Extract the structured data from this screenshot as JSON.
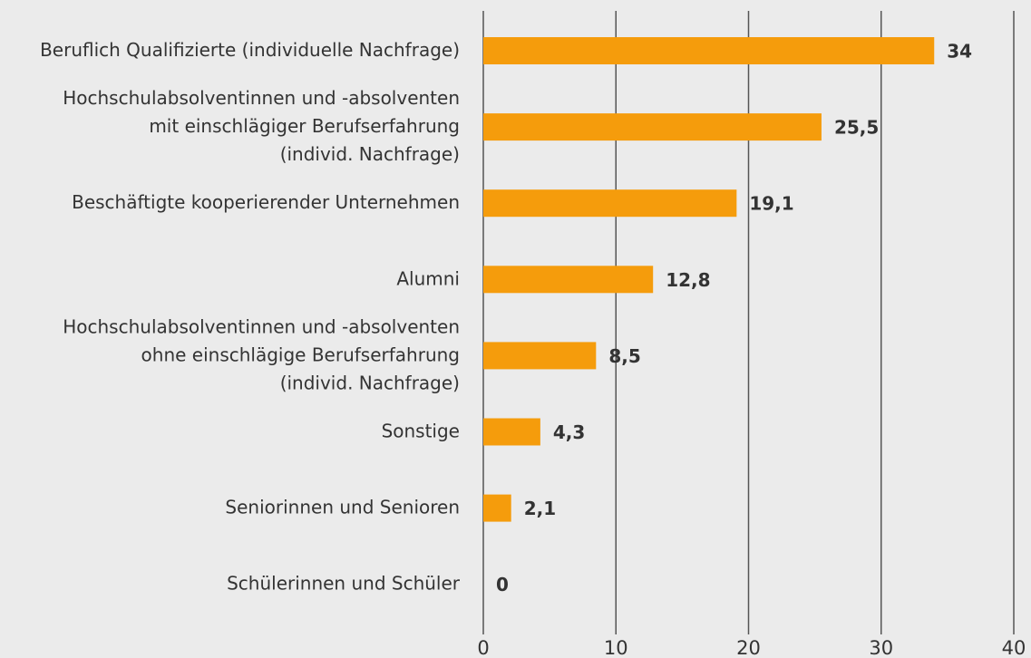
{
  "chart_data": {
    "type": "hbar",
    "categories": [
      "Beruflich Qualifizierte (individuelle Nachfrage)",
      "Hochschulabsolventinnen und -absolventen\nmit einschlägiger Berufserfahrung\n(individ. Nachfrage)",
      "Beschäftigte kooperierender Unternehmen",
      "Alumni",
      "Hochschulabsolventinnen und -absolventen\nohne einschlägige Berufserfahrung\n(individ. Nachfrage)",
      "Sonstige",
      "Seniorinnen und Senioren",
      "Schülerinnen und Schüler"
    ],
    "values": [
      34,
      25.5,
      19.1,
      12.8,
      8.5,
      4.3,
      2.1,
      0
    ],
    "value_labels": [
      "34",
      "25,5",
      "19,1",
      "12,8",
      "8,5",
      "4,3",
      "2,1",
      "0"
    ],
    "color": "#f59c0c",
    "xlim": [
      0,
      40
    ],
    "xticks": [
      0,
      10,
      20,
      30,
      40
    ],
    "grid": true
  }
}
